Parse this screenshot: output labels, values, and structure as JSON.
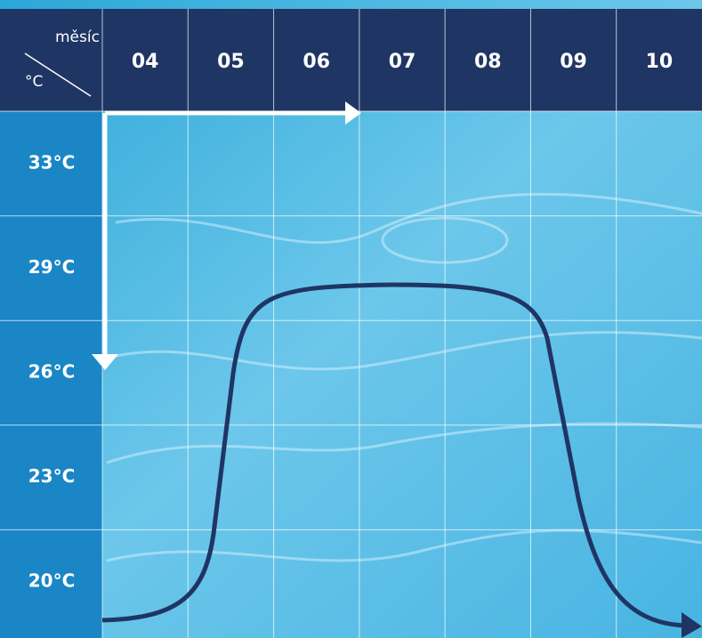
{
  "header": {
    "unit_label": "měsíc",
    "temp_label": "°C"
  },
  "columns": [
    "04",
    "05",
    "06",
    "07",
    "08",
    "09",
    "10"
  ],
  "rows": [
    "33°C",
    "29°C",
    "26°C",
    "23°C",
    "20°C"
  ]
}
